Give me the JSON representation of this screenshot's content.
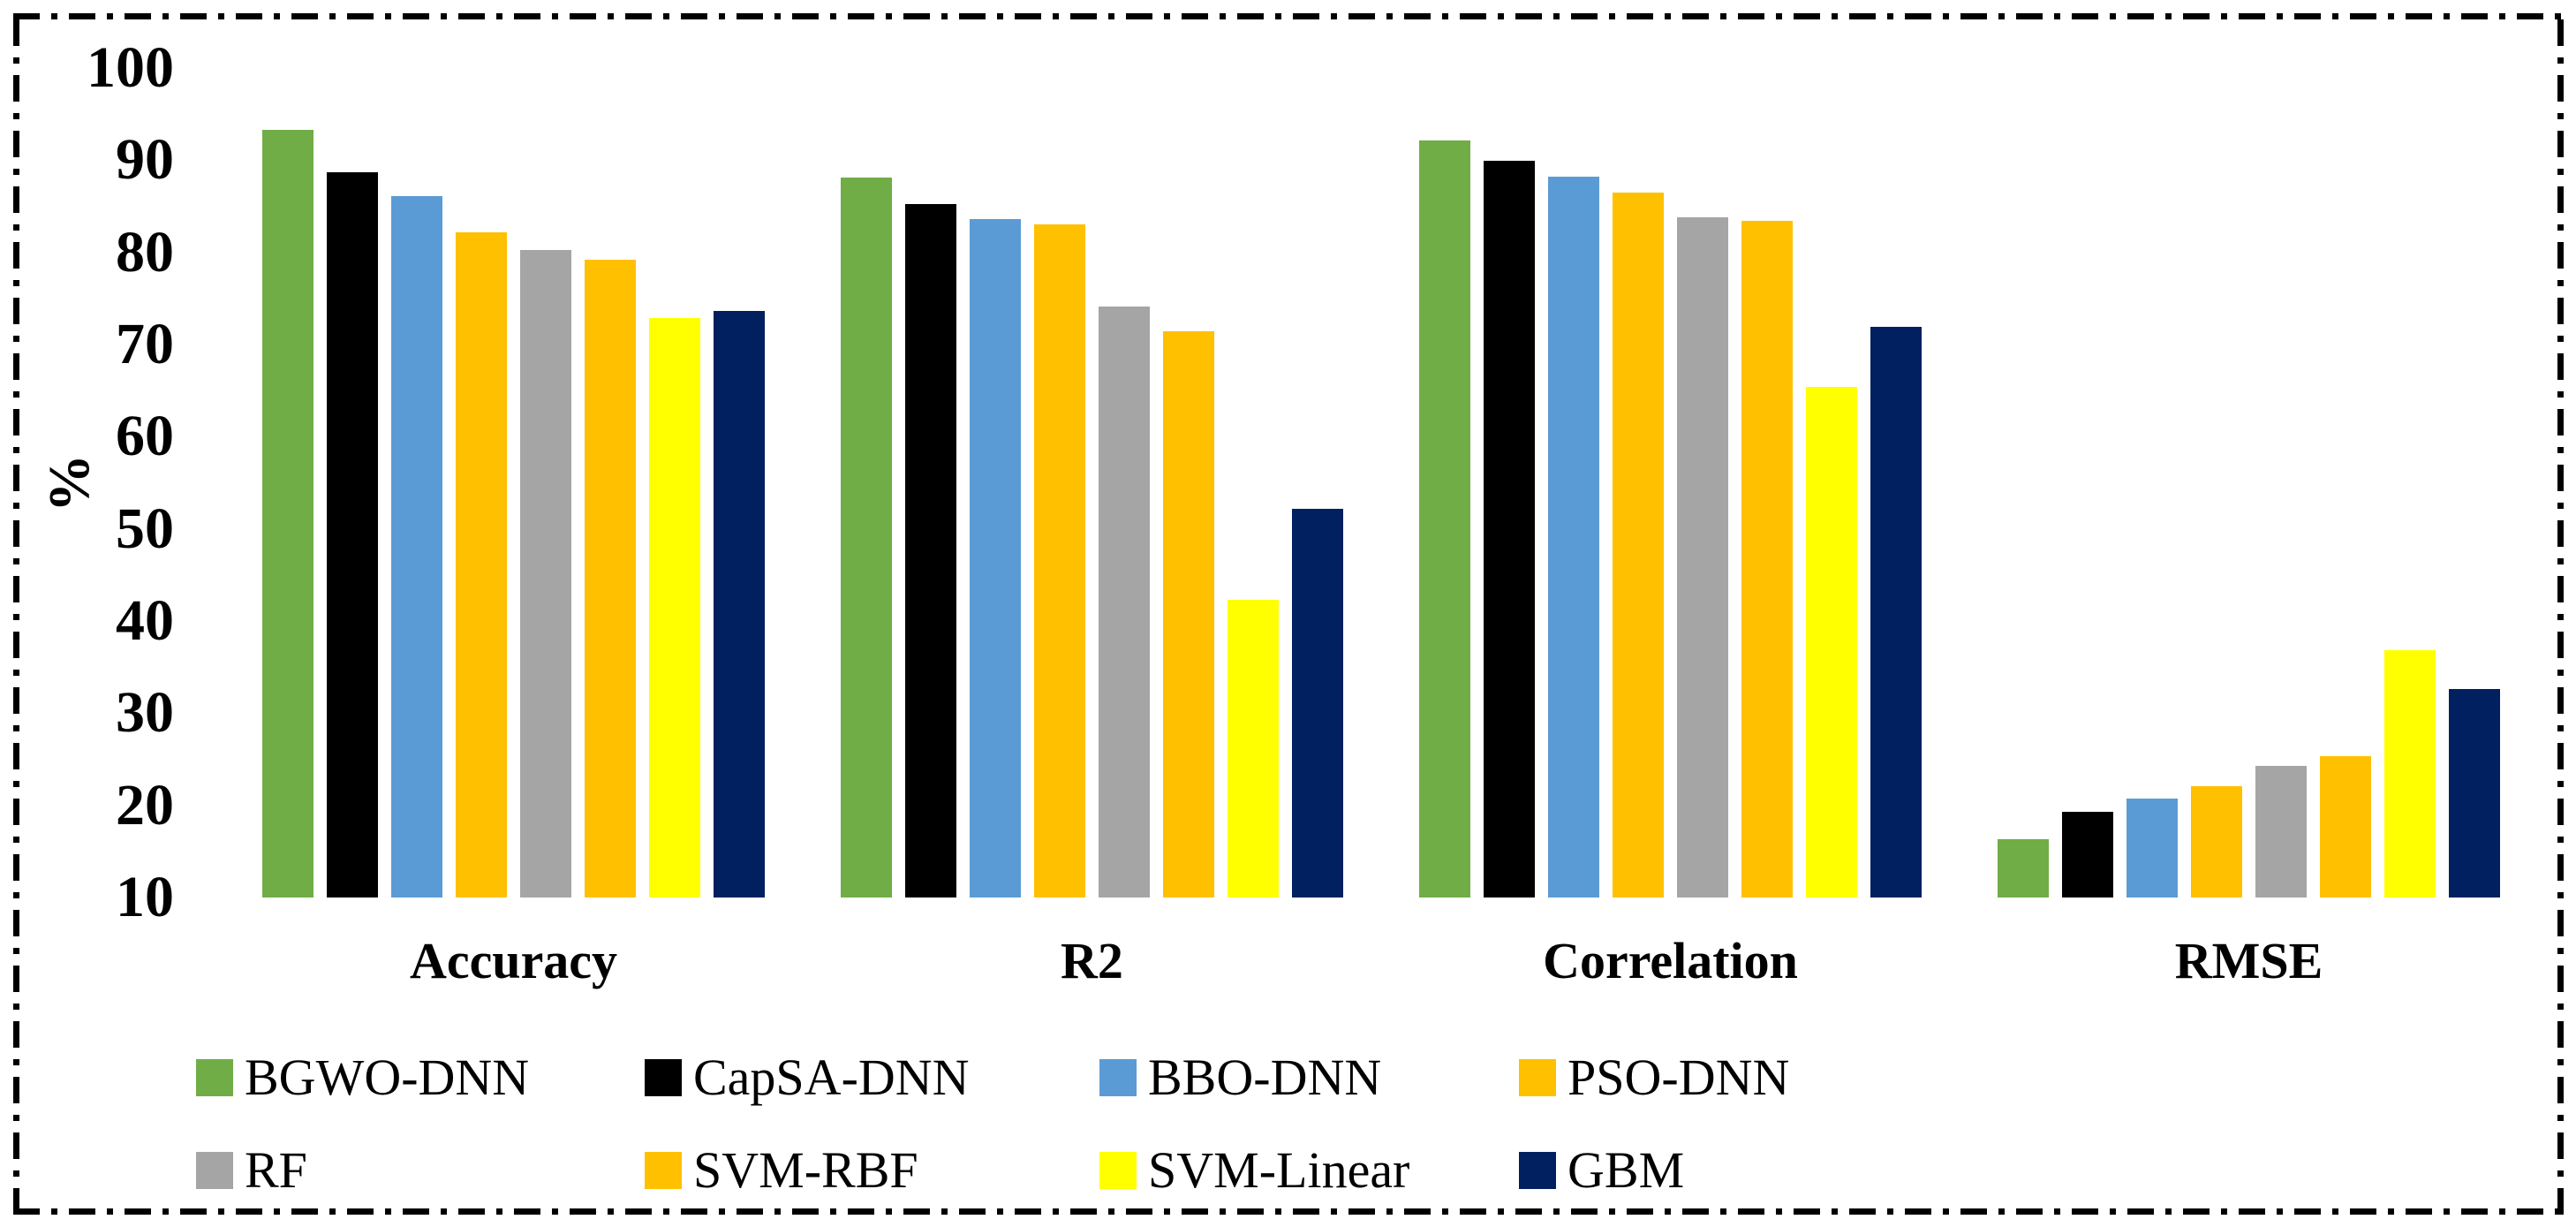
{
  "chart_data": {
    "type": "bar",
    "title": "",
    "ylabel": "%",
    "xlabel": "",
    "categories": [
      "Accuracy",
      "R2",
      "Correlation",
      "RMSE"
    ],
    "series": [
      {
        "name": "BGWO-DNN",
        "color": "#70AD47",
        "values": [
          93.3,
          88.1,
          92.1,
          16.3
        ]
      },
      {
        "name": "CapSA-DNN",
        "color": "#000000",
        "values": [
          88.7,
          85.2,
          89.9,
          19.3
        ]
      },
      {
        "name": "BBO-DNN",
        "color": "#5B9BD5",
        "values": [
          86.1,
          83.6,
          88.2,
          20.7
        ]
      },
      {
        "name": "PSO-DNN",
        "color": "#FFC000",
        "values": [
          82.2,
          83.0,
          86.5,
          22.1
        ]
      },
      {
        "name": "RF",
        "color": "#A5A5A5",
        "values": [
          80.3,
          74.1,
          83.8,
          24.3
        ]
      },
      {
        "name": "SVM-RBF",
        "color": "#FFC000",
        "values": [
          79.2,
          71.4,
          83.4,
          25.3
        ]
      },
      {
        "name": "SVM-Linear",
        "color": "#FFFF00",
        "values": [
          72.9,
          42.3,
          65.4,
          36.8
        ]
      },
      {
        "name": "GBM",
        "color": "#002060",
        "values": [
          73.6,
          52.2,
          71.9,
          32.6
        ]
      }
    ],
    "y_axis": {
      "min": 10,
      "max": 100,
      "step": 10,
      "tick_labels": [
        "100",
        "90",
        "80",
        "70",
        "60",
        "50",
        "40",
        "30",
        "20",
        "10"
      ]
    },
    "grid": false,
    "axis_lines": false,
    "legend_position": "bottom",
    "legend_rows": [
      [
        "BGWO-DNN",
        "CapSA-DNN",
        "BBO-DNN",
        "PSO-DNN"
      ],
      [
        "RF",
        "SVM-RBF",
        "SVM-Linear",
        "GBM"
      ]
    ],
    "frame_style": "black dash-dot border",
    "background_color": "#FFFFFF",
    "text_color": "#000000"
  }
}
